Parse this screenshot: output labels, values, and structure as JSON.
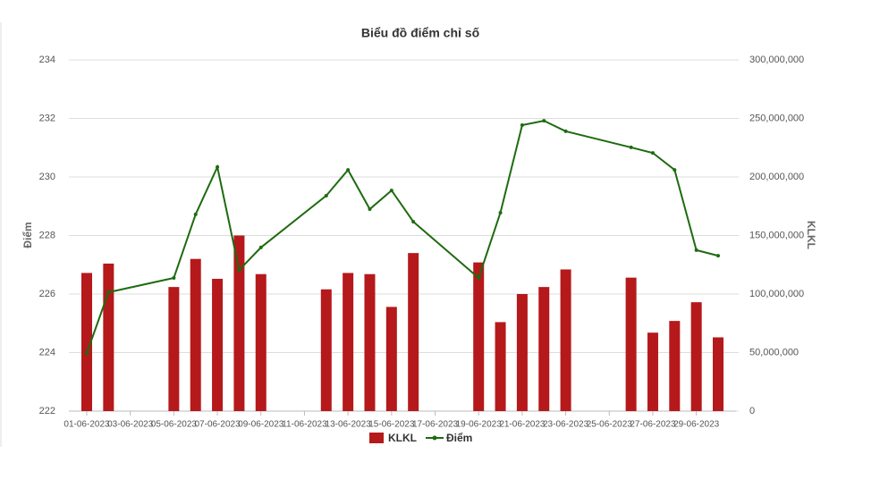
{
  "chart_data": {
    "type": "bar_line",
    "title": "Biểu đồ điểm chỉ số",
    "y_label": "Điểm",
    "y2_label": "KLKL",
    "x": [
      "01-06-2023",
      "02-06-2023",
      "05-06-2023",
      "06-06-2023",
      "07-06-2023",
      "08-06-2023",
      "09-06-2023",
      "12-06-2023",
      "13-06-2023",
      "14-06-2023",
      "15-06-2023",
      "16-06-2023",
      "19-06-2023",
      "20-06-2023",
      "21-06-2023",
      "22-06-2023",
      "23-06-2023",
      "26-06-2023",
      "27-06-2023",
      "28-06-2023",
      "29-06-2023",
      "30-06-2023"
    ],
    "xlim": [
      "01-06-2023",
      "30-06-2023"
    ],
    "xticks": [
      "01-06-2023",
      "03-06-2023",
      "05-06-2023",
      "07-06-2023",
      "09-06-2023",
      "11-06-2023",
      "13-06-2023",
      "15-06-2023",
      "17-06-2023",
      "19-06-2023",
      "21-06-2023",
      "23-06-2023",
      "25-06-2023",
      "27-06-2023",
      "29-06-2023"
    ],
    "ylim": [
      222,
      234
    ],
    "yticks": [
      222,
      224,
      226,
      228,
      230,
      232,
      234
    ],
    "y2lim": [
      0,
      300000000
    ],
    "y2ticks": [
      0,
      {
        "value": 50000000,
        "label": "50,000,000"
      },
      {
        "value": 100000000,
        "label": "100,000,000"
      },
      {
        "value": 150000000,
        "label": "150,000,000"
      },
      {
        "value": 200000000,
        "label": "200,000,000"
      },
      {
        "value": 250000000,
        "label": "250,000,000"
      },
      {
        "value": 300000000,
        "label": "300,000,000"
      }
    ],
    "grid": true,
    "series": [
      {
        "name": "KLKL",
        "type": "bar",
        "axis": "y2",
        "color": "#b5191b",
        "values": [
          118000000,
          126000000,
          106000000,
          130000000,
          113000000,
          150000000,
          117000000,
          104000000,
          118000000,
          117000000,
          89000000,
          135000000,
          127000000,
          76000000,
          100000000,
          106000000,
          121000000,
          114000000,
          67000000,
          77000000,
          93000000,
          63000000
        ]
      },
      {
        "name": "Điểm",
        "type": "line",
        "axis": "y",
        "color": "#1e6b10",
        "values": [
          223.98,
          226.06,
          226.55,
          228.72,
          230.34,
          226.82,
          227.59,
          229.36,
          230.24,
          228.9,
          229.54,
          228.47,
          226.55,
          228.78,
          231.77,
          231.92,
          231.56,
          231.01,
          230.82,
          230.24,
          227.5,
          227.31
        ]
      }
    ]
  }
}
